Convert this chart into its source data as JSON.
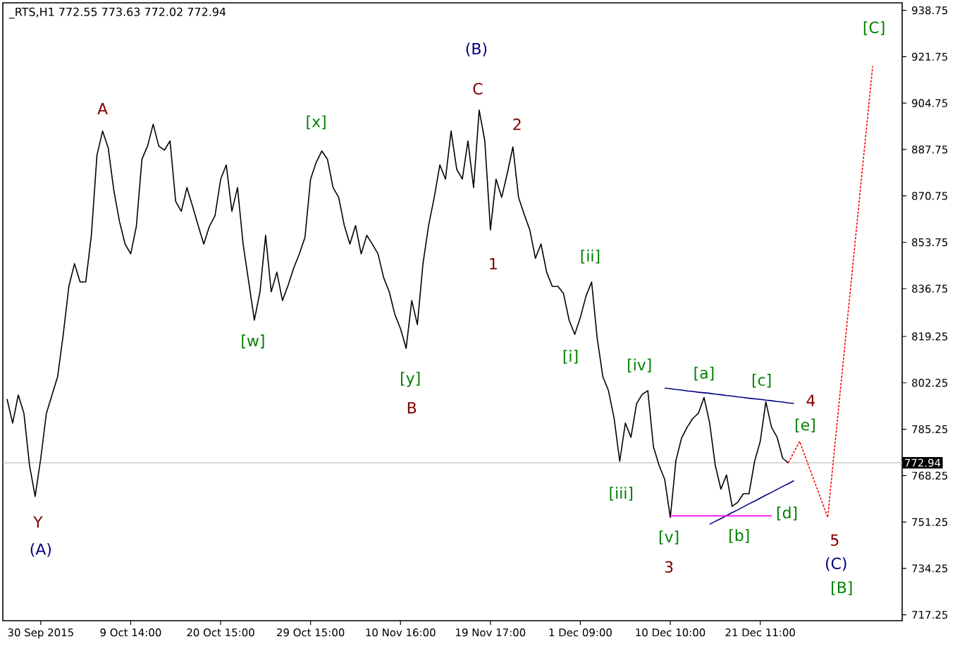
{
  "chart_data": {
    "type": "line",
    "title": "_RTS,H1  772.55 773.63 772.02 772.94",
    "ylim": [
      715.1,
      941.5
    ],
    "categories": [
      null,
      null,
      null,
      null,
      null,
      null,
      "30 Sep 2015",
      null,
      null,
      null,
      null,
      null,
      null,
      null,
      null,
      null,
      null,
      null,
      null,
      null,
      null,
      null,
      "9 Oct 14:00",
      null,
      null,
      null,
      null,
      null,
      null,
      null,
      null,
      null,
      null,
      null,
      null,
      null,
      null,
      null,
      "20 Oct 15:00",
      null,
      null,
      null,
      null,
      null,
      null,
      null,
      null,
      null,
      null,
      null,
      null,
      null,
      null,
      null,
      "29 Oct 15:00",
      null,
      null,
      null,
      null,
      null,
      null,
      null,
      null,
      null,
      null,
      null,
      null,
      null,
      null,
      null,
      "10 Nov 16:00",
      null,
      null,
      null,
      null,
      null,
      null,
      null,
      null,
      null,
      null,
      null,
      null,
      null,
      null,
      null,
      "19 Nov 17:00",
      null,
      null,
      null,
      null,
      null,
      null,
      null,
      null,
      null,
      null,
      null,
      null,
      null,
      null,
      null,
      "1 Dec 09:00",
      null,
      null,
      null,
      null,
      null,
      null,
      null,
      null,
      null,
      null,
      null,
      null,
      null,
      null,
      null,
      "10 Dec 10:00",
      null,
      null,
      null,
      null,
      null,
      null,
      null,
      null,
      null,
      null,
      null,
      null,
      null,
      null,
      null,
      "21 Dec 11:00",
      null,
      null,
      null,
      null,
      null,
      null,
      null,
      null,
      null,
      null,
      null,
      null,
      null,
      null,
      null,
      null,
      null,
      null,
      null,
      null,
      null,
      null,
      null,
      null,
      null
    ],
    "yticks": [
      717.25,
      734.25,
      751.25,
      768.25,
      785.25,
      802.25,
      819.25,
      836.75,
      853.75,
      870.75,
      887.75,
      904.75,
      921.75,
      938.75
    ],
    "series": [
      {
        "color": "#000000",
        "line_style": "solid",
        "values": [
          796.3,
          787.5,
          797.8,
          791.1,
          772.0,
          760.6,
          774.6,
          791.1,
          797.8,
          804.5,
          820.0,
          837.6,
          845.9,
          839.2,
          839.2,
          856.3,
          885.7,
          894.5,
          888.3,
          872.7,
          861.4,
          853.1,
          849.5,
          859.5,
          884.2,
          889.0,
          897.0,
          889.0,
          887.5,
          890.9,
          868.7,
          865.1,
          873.8,
          867.0,
          859.9,
          853.1,
          859.6,
          863.5,
          876.8,
          882.1,
          865.1,
          873.8,
          853.1,
          839.2,
          825.2,
          835.6,
          856.3,
          835.6,
          842.8,
          832.4,
          838.0,
          844.3,
          849.5,
          855.5,
          876.9,
          883.0,
          887.2,
          884.2,
          873.8,
          870.2,
          859.9,
          853.1,
          859.9,
          849.5,
          856.3,
          853.0,
          849.5,
          840.8,
          835.6,
          827.3,
          822.1,
          814.9,
          832.4,
          823.6,
          845.9,
          859.9,
          870.2,
          882.1,
          876.9,
          894.5,
          880.5,
          876.9,
          890.9,
          873.8,
          902.2,
          890.9,
          858.3,
          876.9,
          870.2,
          879.0,
          888.7,
          870.2,
          864.0,
          858.3,
          847.9,
          853.1,
          842.8,
          837.6,
          837.6,
          835.0,
          825.2,
          820.0,
          826.2,
          834.0,
          839.2,
          818.5,
          804.5,
          799.4,
          789.3,
          773.5,
          787.5,
          782.3,
          794.6,
          798.0,
          799.4,
          778.8,
          772.0,
          766.9,
          752.9,
          773.8,
          782.0,
          786.0,
          789.2,
          791.1,
          796.9,
          787.5,
          772.0,
          763.3,
          768.5,
          757.0,
          758.5,
          761.6,
          761.6,
          773.5,
          780.8,
          795.3,
          786.0,
          782.3,
          774.6,
          772.9,
          null,
          null,
          null,
          null,
          null,
          null,
          null,
          null,
          null,
          null,
          null,
          null,
          null,
          null,
          null,
          null,
          null,
          null,
          null,
          null
        ]
      },
      {
        "color": "#ff0000",
        "line_style": "dotted",
        "values": [
          null,
          null,
          null,
          null,
          null,
          null,
          null,
          null,
          null,
          null,
          null,
          null,
          null,
          null,
          null,
          null,
          null,
          null,
          null,
          null,
          null,
          null,
          null,
          null,
          null,
          null,
          null,
          null,
          null,
          null,
          null,
          null,
          null,
          null,
          null,
          null,
          null,
          null,
          null,
          null,
          null,
          null,
          null,
          null,
          null,
          null,
          null,
          null,
          null,
          null,
          null,
          null,
          null,
          null,
          null,
          null,
          null,
          null,
          null,
          null,
          null,
          null,
          null,
          null,
          null,
          null,
          null,
          null,
          null,
          null,
          null,
          null,
          null,
          null,
          null,
          null,
          null,
          null,
          null,
          null,
          null,
          null,
          null,
          null,
          null,
          null,
          null,
          null,
          null,
          null,
          null,
          null,
          null,
          null,
          null,
          null,
          null,
          null,
          null,
          null,
          null,
          null,
          null,
          null,
          null,
          null,
          null,
          null,
          null,
          null,
          null,
          null,
          null,
          null,
          null,
          null,
          null,
          null,
          null,
          null,
          null,
          null,
          null,
          null,
          null,
          null,
          null,
          null,
          null,
          null,
          null,
          null,
          null,
          null,
          null,
          null,
          null,
          null,
          null,
          772.9,
          776.9,
          780.8,
          775.2,
          769.6,
          764.1,
          758.5,
          752.9,
          773.6,
          794.3,
          814.9,
          835.6,
          856.3,
          877.0,
          897.6,
          918.3,
          null,
          null,
          null,
          null,
          null
        ]
      },
      {
        "color": "#000080",
        "line_style": "solid",
        "values": [
          null,
          null,
          null,
          null,
          null,
          null,
          null,
          null,
          null,
          null,
          null,
          null,
          null,
          null,
          null,
          null,
          null,
          null,
          null,
          null,
          null,
          null,
          null,
          null,
          null,
          null,
          null,
          null,
          null,
          null,
          null,
          null,
          null,
          null,
          null,
          null,
          null,
          null,
          null,
          null,
          null,
          null,
          null,
          null,
          null,
          null,
          null,
          null,
          null,
          null,
          null,
          null,
          null,
          null,
          null,
          null,
          null,
          null,
          null,
          null,
          null,
          null,
          null,
          null,
          null,
          null,
          null,
          null,
          null,
          null,
          null,
          null,
          null,
          null,
          null,
          null,
          null,
          null,
          null,
          null,
          null,
          null,
          null,
          null,
          null,
          null,
          null,
          null,
          null,
          null,
          null,
          null,
          null,
          null,
          null,
          null,
          null,
          null,
          null,
          null,
          null,
          null,
          null,
          null,
          null,
          null,
          null,
          null,
          null,
          null,
          null,
          null,
          null,
          null,
          null,
          null,
          null,
          800.3,
          800.1,
          799.8,
          799.6,
          799.3,
          799.1,
          798.8,
          798.6,
          798.4,
          798.1,
          797.9,
          797.6,
          797.4,
          797.1,
          796.9,
          796.6,
          796.4,
          796.2,
          795.9,
          795.7,
          795.4,
          795.2,
          794.9,
          794.7,
          null,
          null,
          null,
          null,
          null,
          null,
          null,
          null,
          null,
          null,
          null,
          null,
          null,
          null,
          null,
          null,
          null,
          null,
          null
        ]
      },
      {
        "color": "#000080",
        "line_style": "solid",
        "values": [
          null,
          null,
          null,
          null,
          null,
          null,
          null,
          null,
          null,
          null,
          null,
          null,
          null,
          null,
          null,
          null,
          null,
          null,
          null,
          null,
          null,
          null,
          null,
          null,
          null,
          null,
          null,
          null,
          null,
          null,
          null,
          null,
          null,
          null,
          null,
          null,
          null,
          null,
          null,
          null,
          null,
          null,
          null,
          null,
          null,
          null,
          null,
          null,
          null,
          null,
          null,
          null,
          null,
          null,
          null,
          null,
          null,
          null,
          null,
          null,
          null,
          null,
          null,
          null,
          null,
          null,
          null,
          null,
          null,
          null,
          null,
          null,
          null,
          null,
          null,
          null,
          null,
          null,
          null,
          null,
          null,
          null,
          null,
          null,
          null,
          null,
          null,
          null,
          null,
          null,
          null,
          null,
          null,
          null,
          null,
          null,
          null,
          null,
          null,
          null,
          null,
          null,
          null,
          null,
          null,
          null,
          null,
          null,
          null,
          null,
          null,
          null,
          null,
          null,
          null,
          null,
          null,
          null,
          null,
          null,
          null,
          null,
          null,
          null,
          null,
          750.4,
          751.5,
          752.5,
          753.6,
          754.7,
          755.7,
          756.8,
          757.9,
          758.9,
          760.0,
          761.1,
          762.1,
          763.2,
          764.3,
          765.3,
          766.4,
          null,
          null,
          null,
          null,
          null,
          null,
          null,
          null,
          null,
          null,
          null,
          null,
          null,
          null,
          null,
          null,
          null,
          null,
          null
        ]
      },
      {
        "color": "#ff00ff",
        "line_style": "solid",
        "values": [
          null,
          null,
          null,
          null,
          null,
          null,
          null,
          null,
          null,
          null,
          null,
          null,
          null,
          null,
          null,
          null,
          null,
          null,
          null,
          null,
          null,
          null,
          null,
          null,
          null,
          null,
          null,
          null,
          null,
          null,
          null,
          null,
          null,
          null,
          null,
          null,
          null,
          null,
          null,
          null,
          null,
          null,
          null,
          null,
          null,
          null,
          null,
          null,
          null,
          null,
          null,
          null,
          null,
          null,
          null,
          null,
          null,
          null,
          null,
          null,
          null,
          null,
          null,
          null,
          null,
          null,
          null,
          null,
          null,
          null,
          null,
          null,
          null,
          null,
          null,
          null,
          null,
          null,
          null,
          null,
          null,
          null,
          null,
          null,
          null,
          null,
          null,
          null,
          null,
          null,
          null,
          null,
          null,
          null,
          null,
          null,
          null,
          null,
          null,
          null,
          null,
          null,
          null,
          null,
          null,
          null,
          null,
          null,
          null,
          null,
          null,
          null,
          null,
          null,
          null,
          null,
          null,
          null,
          753.5,
          753.5,
          753.5,
          753.5,
          753.5,
          753.5,
          753.5,
          753.5,
          753.5,
          753.5,
          753.5,
          753.5,
          753.5,
          753.5,
          753.5,
          753.5,
          753.5,
          753.5,
          753.5,
          null,
          null,
          null,
          null,
          null,
          null,
          null,
          null,
          null,
          null,
          null,
          null,
          null,
          null,
          null,
          null,
          null,
          null,
          null,
          null,
          null,
          null,
          null
        ]
      }
    ],
    "ref_lines": [
      {
        "axis": "y",
        "value": 772.94,
        "label": "772.94",
        "color": "#c0c0c0"
      }
    ],
    "annotations": [
      "Y",
      "(A)",
      "A",
      "[w]",
      "[x]",
      "(B)",
      "C",
      "2",
      "1",
      "[y]",
      "B",
      "[ii]",
      "[i]",
      "[iii]",
      "[iv]",
      "[a]",
      "[c]",
      "4",
      "[e]",
      "[d]",
      "[b]",
      "[v]",
      "3",
      "5",
      "(C)",
      "[B]",
      "[C]"
    ]
  }
}
